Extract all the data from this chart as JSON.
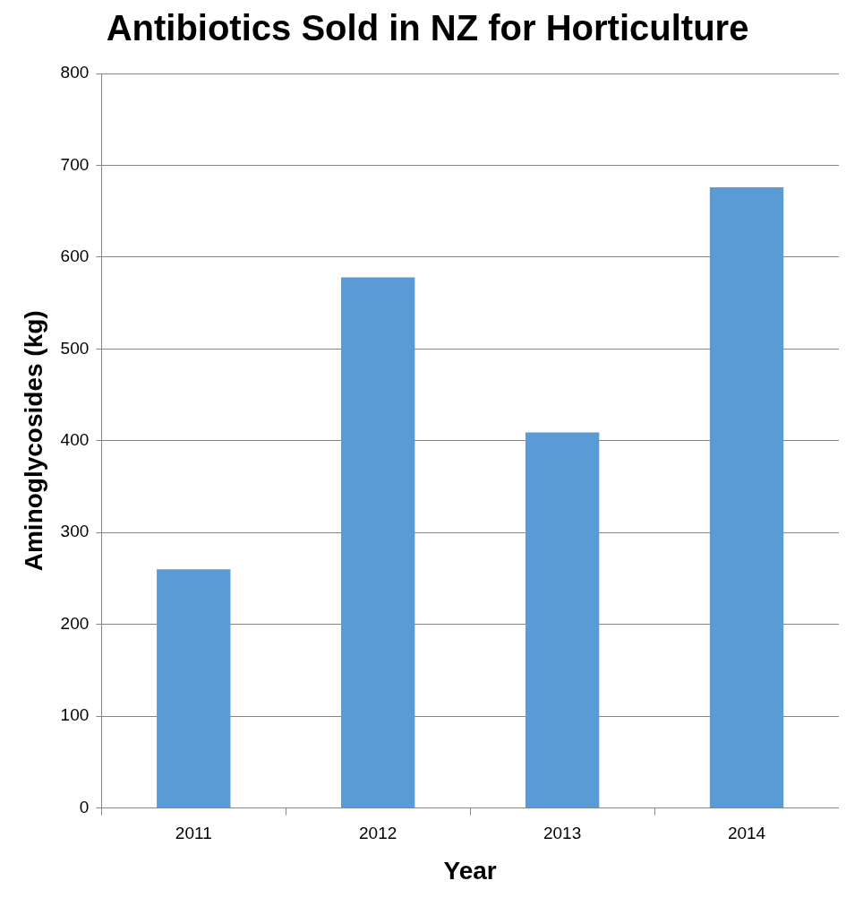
{
  "chart_data": {
    "type": "bar",
    "title": "Antibiotics Sold in NZ for Horticulture",
    "xlabel": "Year",
    "ylabel": "Aminoglycosides (kg)",
    "categories": [
      "2011",
      "2012",
      "2013",
      "2014"
    ],
    "values": [
      260,
      578,
      409,
      676
    ],
    "color": "#5b9bd5",
    "ylim": [
      0,
      800
    ],
    "yticks": [
      0,
      100,
      200,
      300,
      400,
      500,
      600,
      700,
      800
    ],
    "grid": "y",
    "legend": false
  }
}
